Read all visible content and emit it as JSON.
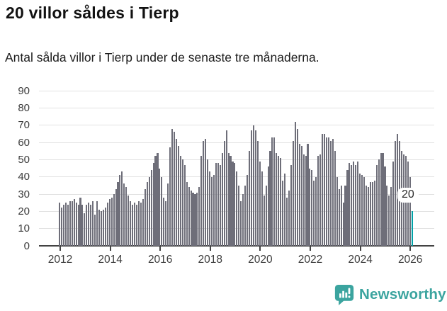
{
  "header": {
    "title": "20 villor såldes i Tierp",
    "subtitle": "Antal sålda villor i Tierp under de senaste tre månaderna."
  },
  "chart_data": {
    "type": "bar",
    "title": "20 villor såldes i Tierp",
    "subtitle": "Antal sålda villor i Tierp under de senaste tre månaderna.",
    "frequency": "monthly",
    "x_start": "2012-01",
    "x_end": "2026-02",
    "values": [
      25,
      22,
      24,
      25,
      24,
      26,
      26,
      27,
      25,
      24,
      28,
      24,
      19,
      24,
      25,
      24,
      26,
      18,
      26,
      21,
      20,
      21,
      22,
      25,
      27,
      28,
      30,
      33,
      37,
      41,
      43,
      36,
      34,
      29,
      26,
      24,
      25,
      24,
      26,
      25,
      27,
      33,
      37,
      40,
      44,
      48,
      52,
      54,
      45,
      40,
      28,
      26,
      36,
      57,
      68,
      66,
      62,
      58,
      52,
      50,
      47,
      37,
      34,
      32,
      31,
      30,
      31,
      34,
      52,
      61,
      62,
      50,
      43,
      40,
      41,
      48,
      48,
      47,
      54,
      61,
      67,
      54,
      52,
      49,
      48,
      43,
      35,
      26,
      30,
      35,
      41,
      55,
      67,
      70,
      67,
      61,
      49,
      43,
      29,
      35,
      46,
      55,
      63,
      63,
      54,
      52,
      51,
      38,
      42,
      28,
      32,
      47,
      61,
      72,
      68,
      59,
      58,
      53,
      52,
      59,
      45,
      44,
      38,
      40,
      52,
      53,
      65,
      65,
      63,
      63,
      61,
      62,
      55,
      40,
      33,
      35,
      25,
      35,
      44,
      48,
      47,
      49,
      47,
      49,
      42,
      41,
      40,
      35,
      34,
      37,
      37,
      38,
      47,
      50,
      54,
      54,
      46,
      35,
      29,
      34,
      49,
      61,
      65,
      61,
      55,
      53,
      52,
      49,
      40,
      20
    ],
    "last_value_label": "20",
    "highlight_last": true,
    "bar_color": "#6e6e79",
    "highlight_color": "#00a1a7",
    "ylim": [
      0,
      90
    ],
    "y_ticks": [
      0,
      10,
      20,
      30,
      40,
      50,
      60,
      70,
      80,
      90
    ],
    "x_tick_labels": [
      "2012",
      "2014",
      "2016",
      "2018",
      "2020",
      "2022",
      "2024",
      "2026"
    ],
    "grid": true,
    "legend": false,
    "xlabel": "",
    "ylabel": ""
  },
  "footer": {
    "brand": "Newsworthy"
  },
  "colors": {
    "grid": "#e2e2e2",
    "axis": "#424242",
    "text": "#3c3c3c",
    "brand_teal": "#3ba49f"
  }
}
